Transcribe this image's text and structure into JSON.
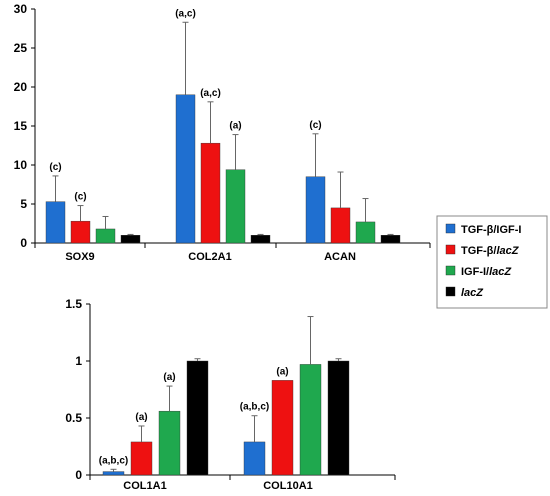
{
  "colors": {
    "tgf_igf": "#1F6FD0",
    "tgf_lacz": "#EE1111",
    "igf_lacz": "#1FA84E",
    "lacz": "#000000"
  },
  "legend": {
    "placement": "right",
    "entries": [
      {
        "prefix": "TGF-β/IGF-I",
        "suffix": "",
        "color_key": "tgf_igf"
      },
      {
        "prefix": "TGF-β/",
        "suffix": "lacZ",
        "color_key": "tgf_lacz"
      },
      {
        "prefix": "IGF-I/",
        "suffix": "lacZ",
        "color_key": "igf_lacz"
      },
      {
        "prefix": "",
        "suffix": "lacZ",
        "color_key": "lacz"
      }
    ]
  },
  "chart_data": [
    {
      "type": "bar",
      "categories": [
        "SOX9",
        "COL2A1",
        "ACAN"
      ],
      "series": [
        {
          "name": "TGF-β/IGF-I",
          "values": [
            5.3,
            19.0,
            8.5
          ],
          "errors": [
            3.3,
            9.3,
            5.5
          ],
          "annotations": [
            "(c)",
            "(a,c)",
            "(c)"
          ]
        },
        {
          "name": "TGF-β/lacZ",
          "values": [
            2.8,
            12.8,
            4.5
          ],
          "errors": [
            2.0,
            5.3,
            4.6
          ],
          "annotations": [
            "(c)",
            "(a,c)",
            ""
          ]
        },
        {
          "name": "IGF-I/lacZ",
          "values": [
            1.8,
            9.4,
            2.7
          ],
          "errors": [
            1.6,
            4.5,
            3.0
          ],
          "annotations": [
            "",
            "(a)",
            ""
          ]
        },
        {
          "name": "lacZ",
          "values": [
            1.0,
            1.0,
            1.0
          ],
          "errors": [
            0.1,
            0.1,
            0.1
          ],
          "annotations": [
            "",
            "",
            ""
          ]
        }
      ],
      "ylim": [
        0,
        30
      ],
      "yticks": [
        "0",
        "5",
        "10",
        "15",
        "20",
        "25",
        "30"
      ],
      "grid": false
    },
    {
      "type": "bar",
      "categories": [
        "COL1A1",
        "COL10A1"
      ],
      "series": [
        {
          "name": "TGF-β/IGF-I",
          "values": [
            0.03,
            0.29
          ],
          "errors": [
            0.02,
            0.23
          ],
          "annotations": [
            "(a,b,c)",
            "(a,b,c)"
          ]
        },
        {
          "name": "TGF-β/lacZ",
          "values": [
            0.29,
            0.83
          ],
          "errors": [
            0.14,
            0.0
          ],
          "annotations": [
            "(a)",
            "(a)"
          ]
        },
        {
          "name": "IGF-I/lacZ",
          "values": [
            0.56,
            0.97
          ],
          "errors": [
            0.22,
            0.42
          ],
          "annotations": [
            "(a)",
            ""
          ]
        },
        {
          "name": "lacZ",
          "values": [
            1.0,
            1.0
          ],
          "errors": [
            0.02,
            0.02
          ],
          "annotations": [
            "",
            ""
          ]
        }
      ],
      "ylim": [
        0,
        1.5
      ],
      "yticks": [
        "0",
        "0.5",
        "1",
        "1.5"
      ],
      "grid": false
    }
  ]
}
